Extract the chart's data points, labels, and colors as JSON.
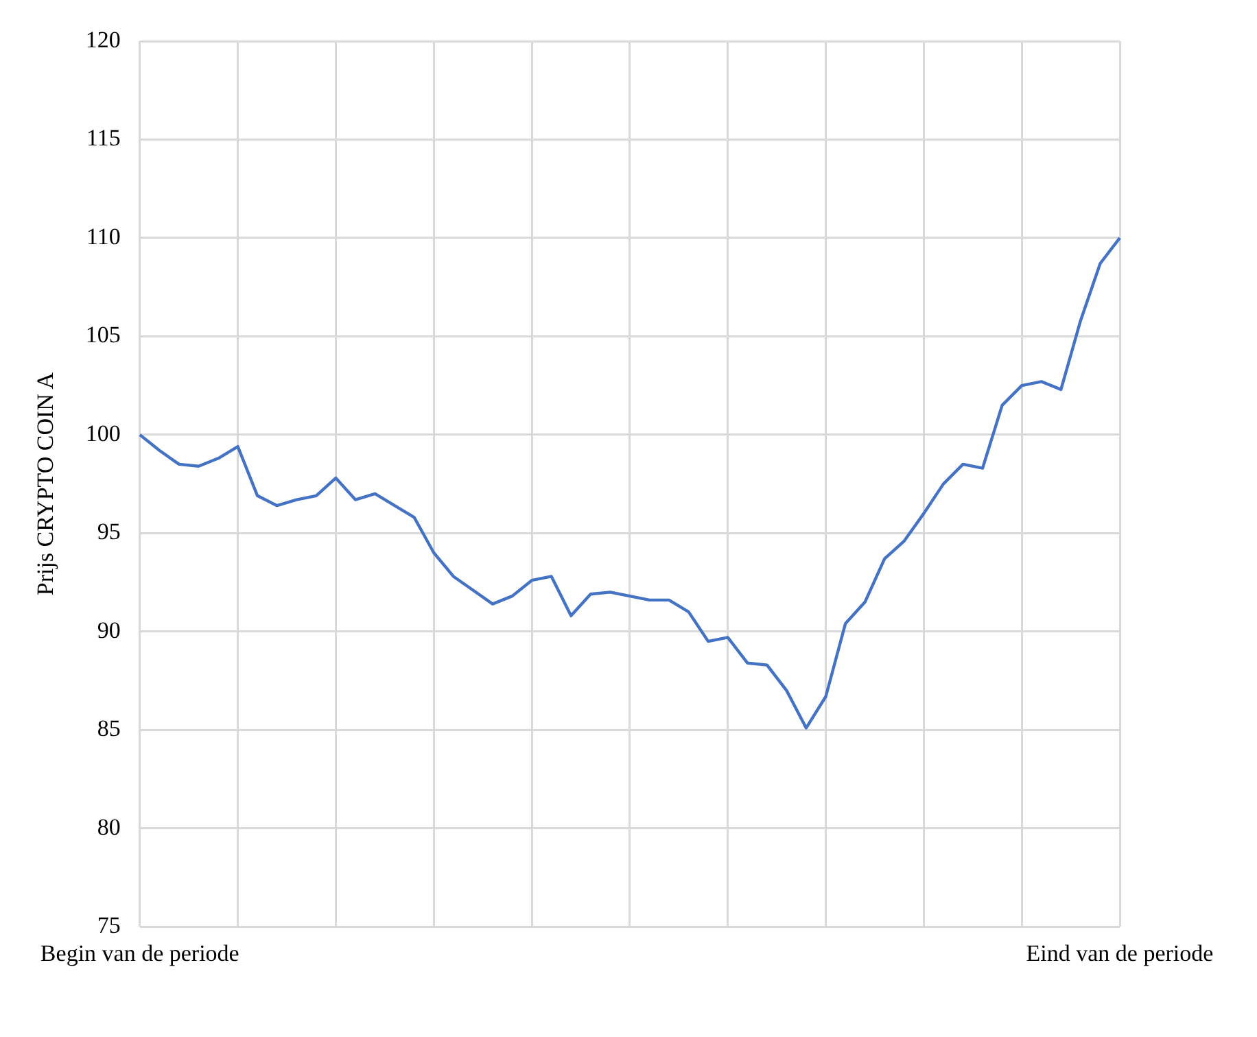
{
  "chart_data": {
    "type": "line",
    "ylabel": "Prijs CRYPTO COIN A",
    "categories": [
      "Begin van de periode",
      null,
      null,
      null,
      null,
      null,
      null,
      null,
      null,
      null,
      null,
      null,
      null,
      null,
      null,
      null,
      null,
      null,
      null,
      null,
      null,
      null,
      null,
      null,
      null,
      null,
      null,
      null,
      null,
      null,
      null,
      null,
      null,
      null,
      null,
      null,
      null,
      null,
      null,
      null,
      null,
      null,
      null,
      null,
      null,
      null,
      null,
      null,
      null,
      null,
      "Eind van de periode"
    ],
    "series": [
      {
        "color": "#4472c4",
        "values": [
          100,
          99.2,
          98.5,
          98.4,
          98.8,
          99.4,
          96.9,
          96.4,
          96.7,
          96.9,
          97.8,
          96.7,
          97.0,
          96.4,
          95.8,
          94.0,
          92.8,
          92.1,
          91.4,
          91.8,
          92.6,
          92.8,
          90.8,
          91.9,
          92.0,
          91.8,
          91.6,
          91.6,
          91.0,
          89.5,
          89.7,
          88.4,
          88.3,
          87.0,
          85.1,
          86.7,
          90.4,
          91.5,
          93.7,
          94.6,
          96.0,
          97.5,
          98.5,
          98.3,
          101.5,
          102.5,
          102.7,
          102.3,
          105.8,
          108.7,
          110
        ]
      }
    ],
    "ylim": [
      75,
      120
    ],
    "yticks": [
      75,
      80,
      85,
      90,
      95,
      100,
      105,
      110,
      115,
      120
    ],
    "grid": true,
    "legend": false,
    "marker": "none",
    "line_style": "solid"
  }
}
